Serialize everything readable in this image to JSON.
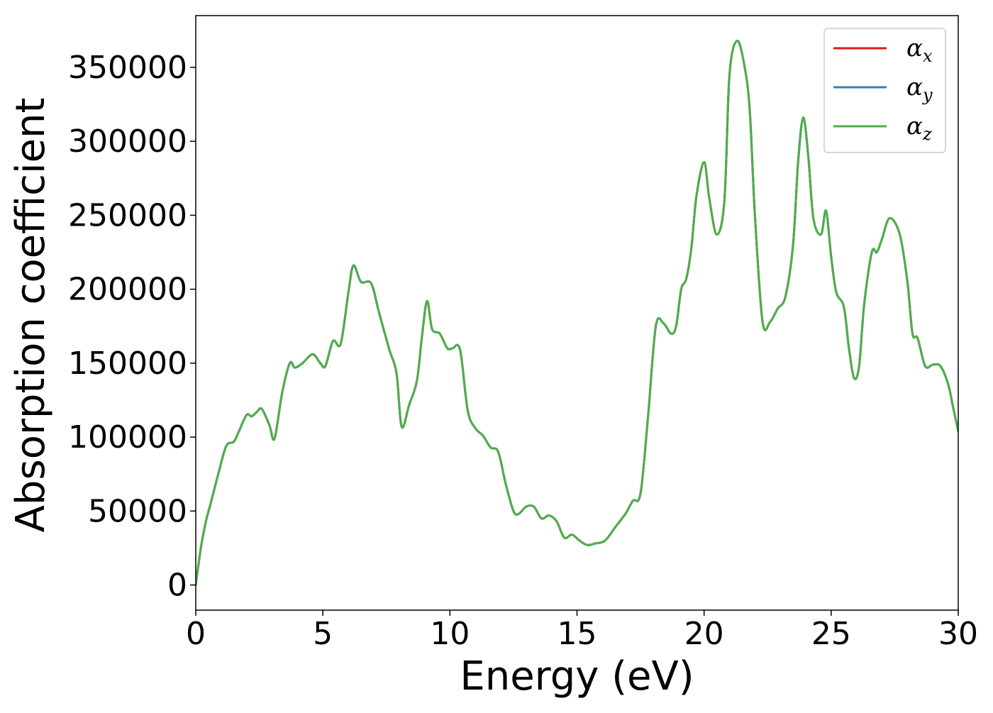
{
  "chart_data": {
    "type": "line",
    "title": "",
    "xlabel": "Energy (eV)",
    "ylabel": "Absorption coefficient",
    "xlim": [
      0,
      30
    ],
    "ylim": [
      -17000,
      385000
    ],
    "xticks": [
      0,
      5,
      10,
      15,
      20,
      25,
      30
    ],
    "xtick_labels": [
      "0",
      "5",
      "10",
      "15",
      "20",
      "25",
      "30"
    ],
    "yticks": [
      0,
      50000,
      100000,
      150000,
      200000,
      250000,
      300000,
      350000
    ],
    "ytick_labels": [
      "0",
      "50000",
      "100000",
      "150000",
      "200000",
      "250000",
      "300000",
      "350000"
    ],
    "grid": false,
    "legend_position": "top-right",
    "x": [
      0,
      0.2,
      0.4,
      0.6,
      0.9,
      1.2,
      1.5,
      1.7,
      2.0,
      2.2,
      2.4,
      2.6,
      2.9,
      3.1,
      3.4,
      3.7,
      3.9,
      4.2,
      4.6,
      4.9,
      5.1,
      5.4,
      5.7,
      6.0,
      6.2,
      6.5,
      6.9,
      7.2,
      7.6,
      7.9,
      8.1,
      8.4,
      8.7,
      8.9,
      9.1,
      9.3,
      9.6,
      9.9,
      10.1,
      10.4,
      10.7,
      11.0,
      11.3,
      11.6,
      11.9,
      12.2,
      12.5,
      12.7,
      13.0,
      13.3,
      13.6,
      13.9,
      14.2,
      14.5,
      14.8,
      15.1,
      15.4,
      15.7,
      16.1,
      16.5,
      16.9,
      17.2,
      17.5,
      17.8,
      18.1,
      18.4,
      18.7,
      18.9,
      19.1,
      19.3,
      19.5,
      19.7,
      20.0,
      20.2,
      20.5,
      20.8,
      21.0,
      21.3,
      21.6,
      21.8,
      22.0,
      22.3,
      22.6,
      22.9,
      23.2,
      23.5,
      23.7,
      23.9,
      24.1,
      24.3,
      24.6,
      24.8,
      25.0,
      25.2,
      25.5,
      25.7,
      25.9,
      26.1,
      26.3,
      26.6,
      26.8,
      27.0,
      27.3,
      27.7,
      28.0,
      28.2,
      28.4,
      28.7,
      29.0,
      29.3,
      29.6,
      29.8,
      30.0
    ],
    "series": [
      {
        "name": "α_x",
        "color": "#e41a1c",
        "values": [
          0,
          25000,
          43000,
          56000,
          76000,
          94000,
          97000,
          104000,
          115000,
          114000,
          117000,
          119000,
          108000,
          99000,
          130000,
          150000,
          147000,
          150000,
          156000,
          150000,
          148000,
          165000,
          163000,
          197000,
          216000,
          205000,
          204000,
          185000,
          160000,
          143000,
          107000,
          122000,
          138000,
          168000,
          192000,
          173000,
          170000,
          160000,
          160000,
          159000,
          118000,
          106000,
          101000,
          93000,
          90000,
          68000,
          50000,
          48000,
          53000,
          53000,
          45000,
          47000,
          43000,
          32000,
          34000,
          30000,
          27000,
          28000,
          30000,
          39000,
          48000,
          57000,
          62000,
          115000,
          175000,
          177000,
          170000,
          175000,
          200000,
          207000,
          228000,
          263000,
          286000,
          262000,
          237000,
          260000,
          345000,
          368000,
          350000,
          320000,
          250000,
          178000,
          178000,
          187000,
          195000,
          230000,
          286000,
          316000,
          290000,
          248000,
          237000,
          253000,
          222000,
          198000,
          188000,
          160000,
          140000,
          148000,
          190000,
          225000,
          225000,
          234000,
          248000,
          237000,
          205000,
          170000,
          167000,
          148000,
          149000,
          148000,
          136000,
          120000,
          104000
        ]
      },
      {
        "name": "α_y",
        "color": "#377eb8",
        "values": [
          0,
          25000,
          43000,
          56000,
          76000,
          94000,
          97000,
          104000,
          115000,
          114000,
          117000,
          119000,
          108000,
          99000,
          130000,
          150000,
          147000,
          150000,
          156000,
          150000,
          148000,
          165000,
          163000,
          197000,
          216000,
          205000,
          204000,
          185000,
          160000,
          143000,
          107000,
          122000,
          138000,
          168000,
          192000,
          173000,
          170000,
          160000,
          160000,
          159000,
          118000,
          106000,
          101000,
          93000,
          90000,
          68000,
          50000,
          48000,
          53000,
          53000,
          45000,
          47000,
          43000,
          32000,
          34000,
          30000,
          27000,
          28000,
          30000,
          39000,
          48000,
          57000,
          62000,
          115000,
          175000,
          177000,
          170000,
          175000,
          200000,
          207000,
          228000,
          263000,
          286000,
          262000,
          237000,
          260000,
          345000,
          368000,
          350000,
          320000,
          250000,
          178000,
          178000,
          187000,
          195000,
          230000,
          286000,
          316000,
          290000,
          248000,
          237000,
          253000,
          222000,
          198000,
          188000,
          160000,
          140000,
          148000,
          190000,
          225000,
          225000,
          234000,
          248000,
          237000,
          205000,
          170000,
          167000,
          148000,
          149000,
          148000,
          136000,
          120000,
          104000
        ]
      },
      {
        "name": "α_z",
        "color": "#4daf4a",
        "values": [
          0,
          25000,
          43000,
          56000,
          76000,
          94000,
          97000,
          104000,
          115000,
          114000,
          117000,
          119000,
          108000,
          99000,
          130000,
          150000,
          147000,
          150000,
          156000,
          150000,
          148000,
          165000,
          163000,
          197000,
          216000,
          205000,
          204000,
          185000,
          160000,
          143000,
          107000,
          122000,
          138000,
          168000,
          192000,
          173000,
          170000,
          160000,
          160000,
          159000,
          118000,
          106000,
          101000,
          93000,
          90000,
          68000,
          50000,
          48000,
          53000,
          53000,
          45000,
          47000,
          43000,
          32000,
          34000,
          30000,
          27000,
          28000,
          30000,
          39000,
          48000,
          57000,
          62000,
          115000,
          175000,
          177000,
          170000,
          175000,
          200000,
          207000,
          228000,
          263000,
          286000,
          262000,
          237000,
          260000,
          345000,
          368000,
          350000,
          320000,
          250000,
          178000,
          178000,
          187000,
          195000,
          230000,
          286000,
          316000,
          290000,
          248000,
          237000,
          253000,
          222000,
          198000,
          188000,
          160000,
          140000,
          148000,
          190000,
          225000,
          225000,
          234000,
          248000,
          237000,
          205000,
          170000,
          167000,
          148000,
          149000,
          148000,
          136000,
          120000,
          104000
        ]
      }
    ],
    "legend": [
      {
        "base": "α",
        "sub": "x"
      },
      {
        "base": "α",
        "sub": "y"
      },
      {
        "base": "α",
        "sub": "z"
      }
    ]
  }
}
